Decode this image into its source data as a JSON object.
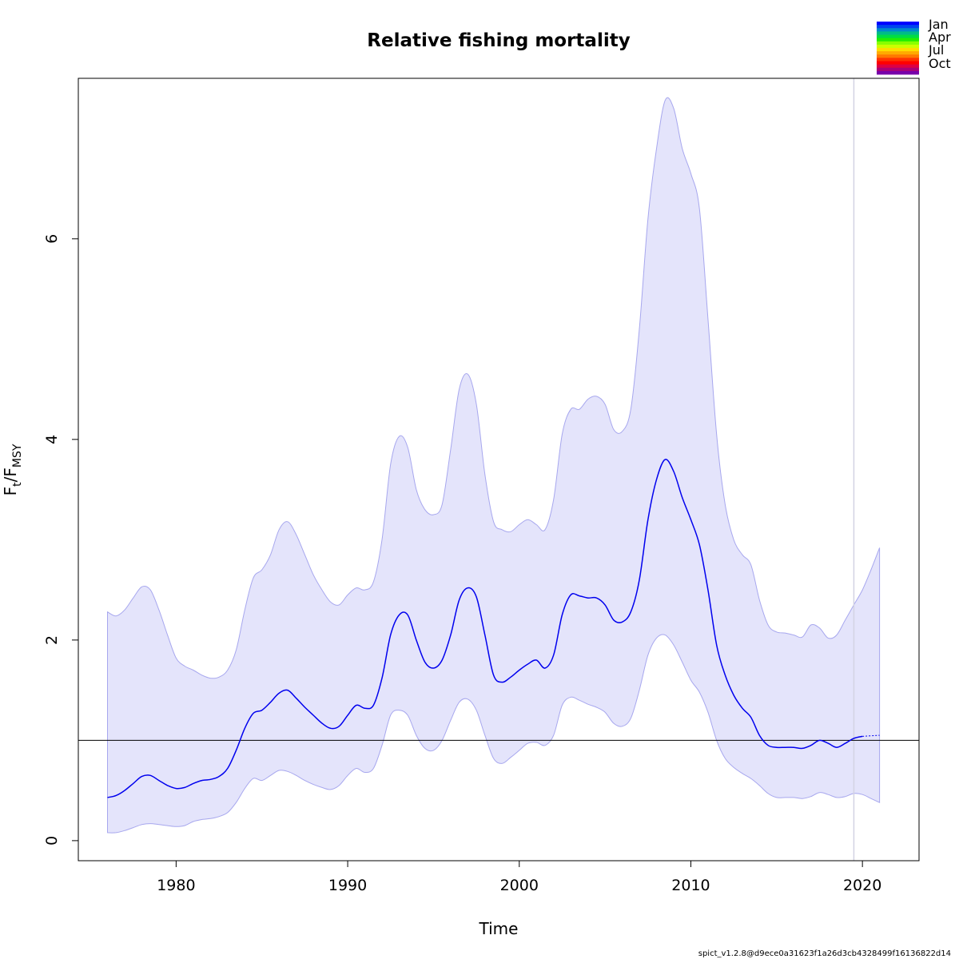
{
  "chart_data": {
    "type": "line",
    "title": "Relative fishing mortality",
    "xlabel": "Time",
    "ylabel_main": "F",
    "ylabel_sub1": "t",
    "ylabel_sep": "/F",
    "ylabel_sub2": "MSY",
    "xlim": [
      1974.3,
      2023.3
    ],
    "ylim": [
      -0.2,
      7.6
    ],
    "x_ticks": [
      1980,
      1990,
      2000,
      2010,
      2020
    ],
    "y_ticks": [
      0,
      2,
      4,
      6
    ],
    "reference_line": 1.0,
    "forecast_start": 2019.5,
    "grid": false,
    "colors": {
      "line": "#0000ee",
      "band_fill": "#e4e4fb",
      "band_edge": "#a7a7ee",
      "reference": "#000000",
      "forecast_marker": "#d3d3e3"
    },
    "series": [
      {
        "role": "estimate",
        "x": [
          1976.0,
          1976.5,
          1977.0,
          1977.5,
          1978.0,
          1978.5,
          1979.0,
          1979.5,
          1980.0,
          1980.5,
          1981.0,
          1981.5,
          1982.0,
          1982.5,
          1983.0,
          1983.5,
          1984.0,
          1984.5,
          1985.0,
          1985.5,
          1986.0,
          1986.5,
          1987.0,
          1987.5,
          1988.0,
          1988.5,
          1989.0,
          1989.5,
          1990.0,
          1990.5,
          1991.0,
          1991.5,
          1992.0,
          1992.5,
          1993.0,
          1993.5,
          1994.0,
          1994.5,
          1995.0,
          1995.5,
          1996.0,
          1996.5,
          1997.0,
          1997.5,
          1998.0,
          1998.5,
          1999.0,
          1999.5,
          2000.0,
          2000.5,
          2001.0,
          2001.5,
          2002.0,
          2002.5,
          2003.0,
          2003.5,
          2004.0,
          2004.5,
          2005.0,
          2005.5,
          2006.0,
          2006.5,
          2007.0,
          2007.5,
          2008.0,
          2008.5,
          2009.0,
          2009.5,
          2010.0,
          2010.5,
          2011.0,
          2011.5,
          2012.0,
          2012.5,
          2013.0,
          2013.5,
          2014.0,
          2014.5,
          2015.0,
          2015.5,
          2016.0,
          2016.5,
          2017.0,
          2017.5,
          2018.0,
          2018.5,
          2019.0,
          2019.5,
          2020.0
        ],
        "values": [
          0.43,
          0.45,
          0.5,
          0.57,
          0.64,
          0.65,
          0.6,
          0.55,
          0.52,
          0.53,
          0.57,
          0.6,
          0.61,
          0.64,
          0.72,
          0.9,
          1.12,
          1.27,
          1.3,
          1.38,
          1.47,
          1.5,
          1.42,
          1.33,
          1.25,
          1.17,
          1.12,
          1.14,
          1.25,
          1.35,
          1.32,
          1.35,
          1.62,
          2.05,
          2.25,
          2.25,
          2.0,
          1.78,
          1.72,
          1.8,
          2.05,
          2.4,
          2.52,
          2.43,
          2.05,
          1.65,
          1.58,
          1.63,
          1.7,
          1.76,
          1.8,
          1.72,
          1.85,
          2.25,
          2.45,
          2.44,
          2.42,
          2.42,
          2.35,
          2.2,
          2.18,
          2.28,
          2.6,
          3.2,
          3.6,
          3.8,
          3.68,
          3.42,
          3.2,
          2.95,
          2.5,
          1.95,
          1.65,
          1.45,
          1.32,
          1.23,
          1.05,
          0.95,
          0.93,
          0.93,
          0.93,
          0.92,
          0.95,
          1.0,
          0.97,
          0.93,
          0.97,
          1.02,
          1.04
        ]
      },
      {
        "role": "forecast",
        "x": [
          2020.0,
          2021.0
        ],
        "values": [
          1.04,
          1.05
        ]
      },
      {
        "role": "upper_ci",
        "x": [
          1976.0,
          1976.5,
          1977.0,
          1977.5,
          1978.0,
          1978.5,
          1979.0,
          1979.5,
          1980.0,
          1980.5,
          1981.0,
          1981.5,
          1982.0,
          1982.5,
          1983.0,
          1983.5,
          1984.0,
          1984.5,
          1985.0,
          1985.5,
          1986.0,
          1986.5,
          1987.0,
          1987.5,
          1988.0,
          1988.5,
          1989.0,
          1989.5,
          1990.0,
          1990.5,
          1991.0,
          1991.5,
          1992.0,
          1992.5,
          1993.0,
          1993.5,
          1994.0,
          1994.5,
          1995.0,
          1995.5,
          1996.0,
          1996.5,
          1997.0,
          1997.5,
          1998.0,
          1998.5,
          1999.0,
          1999.5,
          2000.0,
          2000.5,
          2001.0,
          2001.5,
          2002.0,
          2002.5,
          2003.0,
          2003.5,
          2004.0,
          2004.5,
          2005.0,
          2005.5,
          2006.0,
          2006.5,
          2007.0,
          2007.5,
          2008.0,
          2008.5,
          2009.0,
          2009.5,
          2010.0,
          2010.5,
          2011.0,
          2011.5,
          2012.0,
          2012.5,
          2013.0,
          2013.5,
          2014.0,
          2014.5,
          2015.0,
          2015.5,
          2016.0,
          2016.5,
          2017.0,
          2017.5,
          2018.0,
          2018.5,
          2019.0,
          2019.5,
          2020.0,
          2020.5,
          2021.0
        ],
        "values": [
          2.28,
          2.24,
          2.3,
          2.42,
          2.53,
          2.5,
          2.3,
          2.05,
          1.82,
          1.74,
          1.7,
          1.65,
          1.62,
          1.63,
          1.7,
          1.9,
          2.3,
          2.62,
          2.7,
          2.85,
          3.1,
          3.18,
          3.05,
          2.85,
          2.65,
          2.5,
          2.38,
          2.35,
          2.45,
          2.52,
          2.5,
          2.58,
          3.0,
          3.75,
          4.03,
          3.92,
          3.5,
          3.3,
          3.25,
          3.35,
          3.9,
          4.5,
          4.65,
          4.35,
          3.65,
          3.18,
          3.1,
          3.08,
          3.15,
          3.2,
          3.15,
          3.1,
          3.4,
          4.05,
          4.3,
          4.3,
          4.4,
          4.43,
          4.35,
          4.1,
          4.08,
          4.3,
          5.1,
          6.2,
          6.9,
          7.38,
          7.3,
          6.9,
          6.65,
          6.3,
          5.2,
          4.05,
          3.35,
          3.0,
          2.85,
          2.75,
          2.4,
          2.15,
          2.08,
          2.07,
          2.05,
          2.03,
          2.15,
          2.12,
          2.02,
          2.05,
          2.2,
          2.35,
          2.5,
          2.7,
          2.92
        ]
      },
      {
        "role": "lower_ci",
        "x": [
          1976.0,
          1976.5,
          1977.0,
          1977.5,
          1978.0,
          1978.5,
          1979.0,
          1979.5,
          1980.0,
          1980.5,
          1981.0,
          1981.5,
          1982.0,
          1982.5,
          1983.0,
          1983.5,
          1984.0,
          1984.5,
          1985.0,
          1985.5,
          1986.0,
          1986.5,
          1987.0,
          1987.5,
          1988.0,
          1988.5,
          1989.0,
          1989.5,
          1990.0,
          1990.5,
          1991.0,
          1991.5,
          1992.0,
          1992.5,
          1993.0,
          1993.5,
          1994.0,
          1994.5,
          1995.0,
          1995.5,
          1996.0,
          1996.5,
          1997.0,
          1997.5,
          1998.0,
          1998.5,
          1999.0,
          1999.5,
          2000.0,
          2000.5,
          2001.0,
          2001.5,
          2002.0,
          2002.5,
          2003.0,
          2003.5,
          2004.0,
          2004.5,
          2005.0,
          2005.5,
          2006.0,
          2006.5,
          2007.0,
          2007.5,
          2008.0,
          2008.5,
          2009.0,
          2009.5,
          2010.0,
          2010.5,
          2011.0,
          2011.5,
          2012.0,
          2012.5,
          2013.0,
          2013.5,
          2014.0,
          2014.5,
          2015.0,
          2015.5,
          2016.0,
          2016.5,
          2017.0,
          2017.5,
          2018.0,
          2018.5,
          2019.0,
          2019.5,
          2020.0,
          2020.5,
          2021.0
        ],
        "values": [
          0.08,
          0.08,
          0.1,
          0.13,
          0.16,
          0.17,
          0.16,
          0.15,
          0.14,
          0.15,
          0.19,
          0.21,
          0.22,
          0.24,
          0.28,
          0.38,
          0.52,
          0.62,
          0.6,
          0.65,
          0.7,
          0.69,
          0.65,
          0.6,
          0.56,
          0.53,
          0.51,
          0.55,
          0.65,
          0.72,
          0.68,
          0.72,
          0.95,
          1.25,
          1.3,
          1.25,
          1.05,
          0.92,
          0.9,
          1.0,
          1.2,
          1.38,
          1.41,
          1.3,
          1.05,
          0.82,
          0.77,
          0.83,
          0.9,
          0.97,
          0.98,
          0.95,
          1.05,
          1.35,
          1.43,
          1.4,
          1.36,
          1.33,
          1.28,
          1.17,
          1.14,
          1.22,
          1.5,
          1.85,
          2.02,
          2.05,
          1.95,
          1.78,
          1.6,
          1.48,
          1.28,
          1.0,
          0.82,
          0.73,
          0.67,
          0.62,
          0.55,
          0.47,
          0.43,
          0.43,
          0.43,
          0.42,
          0.44,
          0.48,
          0.46,
          0.43,
          0.44,
          0.47,
          0.46,
          0.42,
          0.38
        ]
      }
    ],
    "legend": {
      "placement": "top-right",
      "labels": [
        "Jan",
        "Apr",
        "Jul",
        "Oct"
      ],
      "colors": [
        "#0000ff",
        "#0044ee",
        "#0088cc",
        "#00bb88",
        "#00dd44",
        "#22ee00",
        "#88ff00",
        "#ccff00",
        "#ffdd00",
        "#ffaa00",
        "#ff7700",
        "#ff3300",
        "#ff0000",
        "#dd0044",
        "#aa0077",
        "#7700aa"
      ]
    },
    "footer": "spict_v1.2.8@d9ece0a31623f1a26d3cb4328499f16136822d14"
  }
}
